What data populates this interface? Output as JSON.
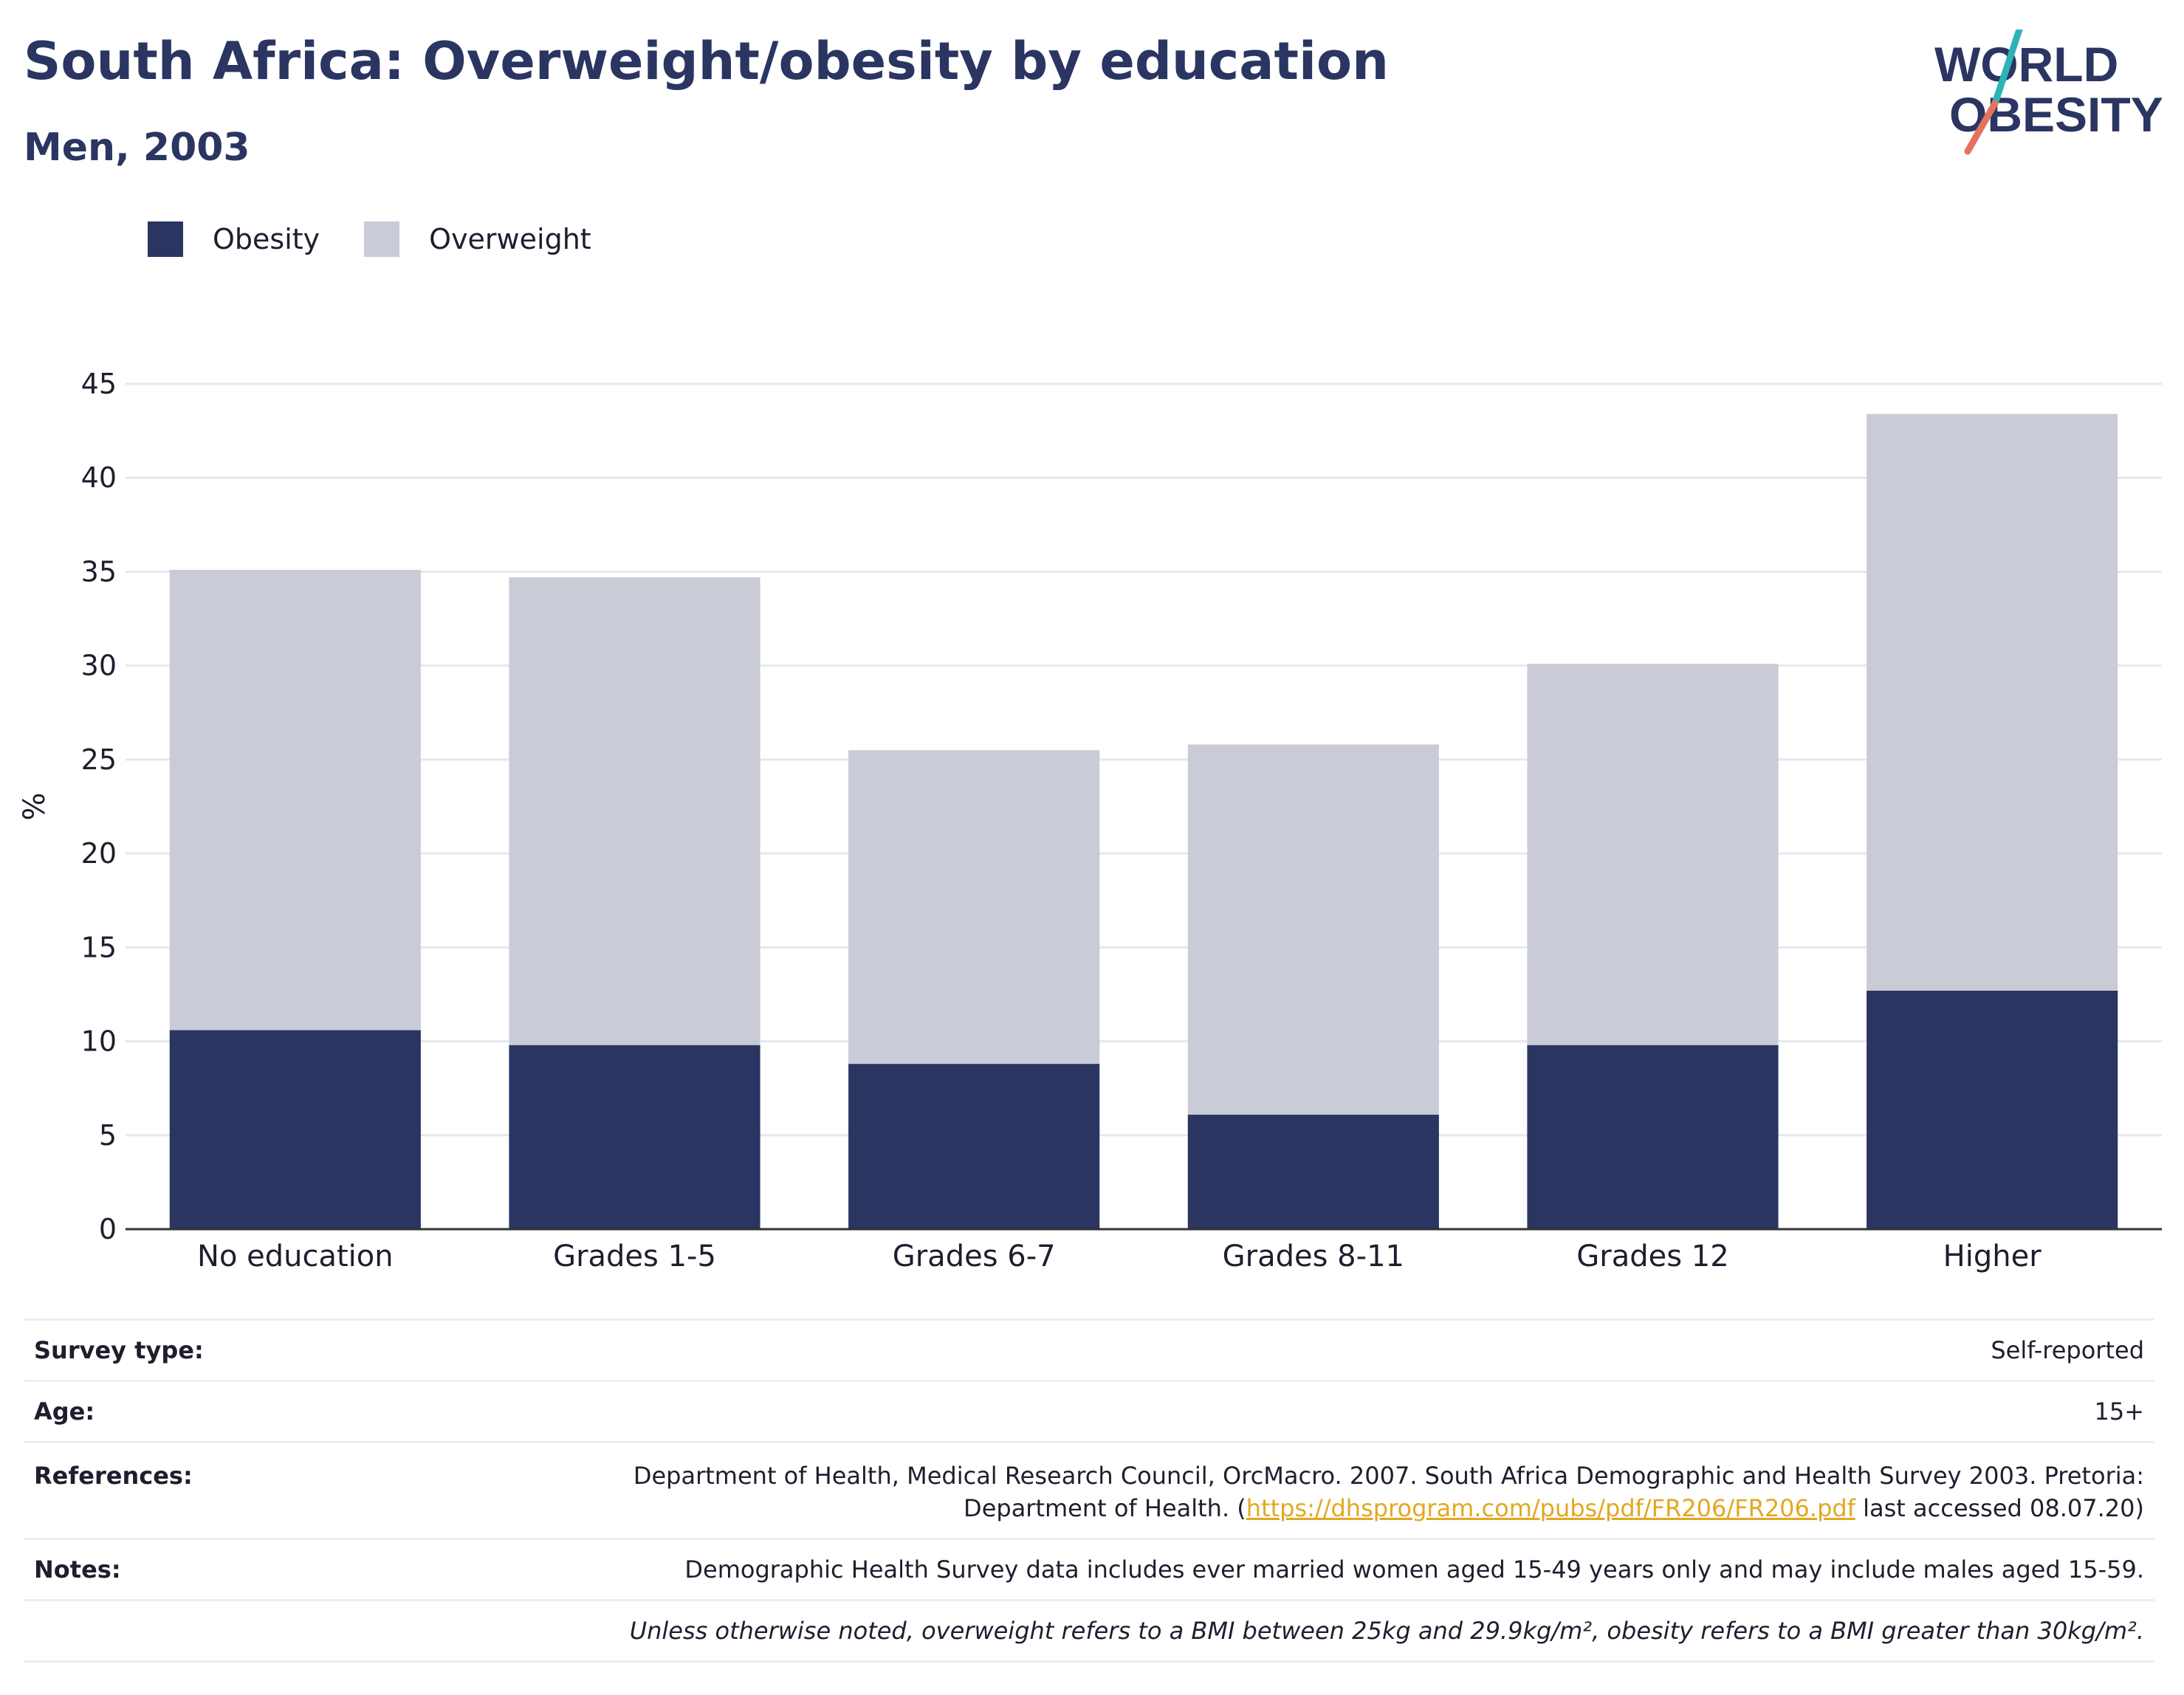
{
  "header": {
    "title": "South Africa: Overweight/obesity by education",
    "subtitle": "Men, 2003",
    "logo_line1": "WORLD",
    "logo_line2": "OBESITY"
  },
  "legend": {
    "items": [
      {
        "label": "Obesity",
        "color": "#2b3562"
      },
      {
        "label": "Overweight",
        "color": "#c9cbd7"
      }
    ]
  },
  "chart_data": {
    "type": "bar",
    "stacked": true,
    "categories": [
      "No education",
      "Grades 1-5",
      "Grades 6-7",
      "Grades 8-11",
      "Grades 12",
      "Higher"
    ],
    "series": [
      {
        "name": "Obesity",
        "color": "#2b3562",
        "values": [
          10.6,
          9.8,
          8.8,
          6.1,
          9.8,
          12.7
        ]
      },
      {
        "name": "Overweight",
        "color": "#c9cbd7",
        "values": [
          24.5,
          24.9,
          16.7,
          19.7,
          20.3,
          30.7
        ]
      }
    ],
    "ylabel": "%",
    "ylim": [
      0,
      45
    ],
    "yticks": [
      0,
      5,
      10,
      15,
      20,
      25,
      30,
      35,
      40,
      45
    ],
    "grid": true,
    "legend_position": "top-left"
  },
  "info": {
    "survey_type_label": "Survey type:",
    "survey_type_value": "Self-reported",
    "age_label": "Age:",
    "age_value": "15+",
    "references_label": "References:",
    "references_line1": "Department of Health, Medical Research Council, OrcMacro. 2007. South Africa Demographic and Health Survey 2003. Pretoria:",
    "references_line2_prefix": "Department of Health. (",
    "references_link": "https://dhsprogram.com/pubs/pdf/FR206/FR206.pdf",
    "references_line2_suffix": " last accessed 08.07.20)",
    "notes_label": "Notes:",
    "notes_value": "Demographic Health Survey data includes ever married women aged 15-49 years only and may include males aged 15-59.",
    "definition_note": "Unless otherwise noted, overweight refers to a BMI between 25kg and 29.9kg/m², obesity refers to a BMI greater than 30kg/m²."
  }
}
